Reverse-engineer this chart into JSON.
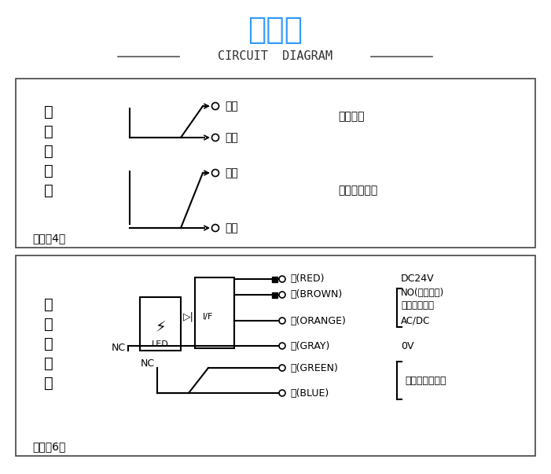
{
  "title_cn": "电路图",
  "title_en": "CIRCUIT  DIAGRAM",
  "title_color": "#3399FF",
  "bg_color": "#FFFFFF",
  "box_color": "#444444",
  "text_color": "#000000",
  "top_box1_label": "常\n闭\n电\n路\n图",
  "top_box1_sublabel": "常闭型4线",
  "top_box2_label": "常\n开\n电\n路\n图",
  "top_box2_sublabel": "常开型6线",
  "nc_wires_top": [
    "棕色",
    "橙色",
    "绿色",
    "蓝色"
  ],
  "nc_signals": [
    "对刀信号",
    "超程保护信号"
  ],
  "no_wires": [
    "红(RED)",
    "棕(BROWN)",
    "橙(ORANGE)",
    "灰(GRAY)",
    "绿(GREEN)",
    "蓝(BLUE)"
  ],
  "no_labels_right": [
    "DC24V",
    "NO(反相输出)",
    "继电器输出型",
    "AC/DC",
    "0V"
  ],
  "nc_label": "NC",
  "alarm_label": "超行程报警信号"
}
